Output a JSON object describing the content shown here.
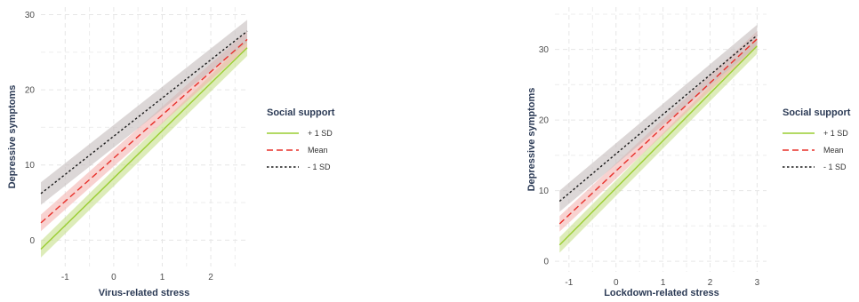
{
  "chart_data": [
    {
      "type": "line",
      "title": "",
      "xlabel": "Virus-related stress",
      "ylabel": "Depressive symptoms",
      "xlim": [
        -1.5,
        2.75
      ],
      "ylim": [
        -3.5,
        31
      ],
      "xticks": [
        "-1",
        "0",
        "1",
        "2"
      ],
      "yticks": [
        "0",
        "10",
        "20",
        "30"
      ],
      "grid": true,
      "legend": {
        "title": "Social support",
        "placement": "right",
        "entries": [
          "+ 1 SD",
          "Mean",
          "- 1 SD"
        ]
      },
      "series": [
        {
          "name": "+ 1 SD",
          "color": "#9acd32",
          "dash": "solid",
          "x": [
            -1.5,
            2.75
          ],
          "y": [
            -1.2,
            25.6
          ],
          "ci_width": 1.1,
          "band_color": "#c7e08a"
        },
        {
          "name": "Mean",
          "color": "#e8302a",
          "dash": "dashed",
          "x": [
            -1.5,
            2.75
          ],
          "y": [
            2.3,
            26.7
          ],
          "ci_width": 1.1,
          "band_color": "#f4b4b0"
        },
        {
          "name": "- 1 SD",
          "color": "#1a1a1a",
          "dash": "dotted",
          "x": [
            -1.5,
            2.75
          ],
          "y": [
            6.2,
            27.8
          ],
          "ci_width": 1.5,
          "band_color": "#c4bcbc"
        }
      ]
    },
    {
      "type": "line",
      "title": "",
      "xlabel": "Lockdown-related stress",
      "ylabel": "Depressive symptoms",
      "xlim": [
        -1.3,
        3.2
      ],
      "ylim": [
        -1.5,
        36
      ],
      "xticks": [
        "-1",
        "0",
        "1",
        "2",
        "3"
      ],
      "yticks": [
        "0",
        "10",
        "20",
        "30"
      ],
      "grid": true,
      "legend": {
        "title": "Social support",
        "placement": "right",
        "entries": [
          "+ 1 SD",
          "Mean",
          "- 1 SD"
        ]
      },
      "series": [
        {
          "name": "+ 1 SD",
          "color": "#9acd32",
          "dash": "solid",
          "x": [
            -1.2,
            3.0
          ],
          "y": [
            2.3,
            30.5
          ],
          "ci_width": 1.1,
          "band_color": "#c7e08a"
        },
        {
          "name": "Mean",
          "color": "#e8302a",
          "dash": "dashed",
          "x": [
            -1.2,
            3.0
          ],
          "y": [
            5.3,
            31.5
          ],
          "ci_width": 1.1,
          "band_color": "#f4b4b0"
        },
        {
          "name": "- 1 SD",
          "color": "#1a1a1a",
          "dash": "dotted",
          "x": [
            -1.2,
            3.0
          ],
          "y": [
            8.5,
            32.0
          ],
          "ci_width": 1.5,
          "band_color": "#c4bcbc"
        }
      ]
    }
  ]
}
